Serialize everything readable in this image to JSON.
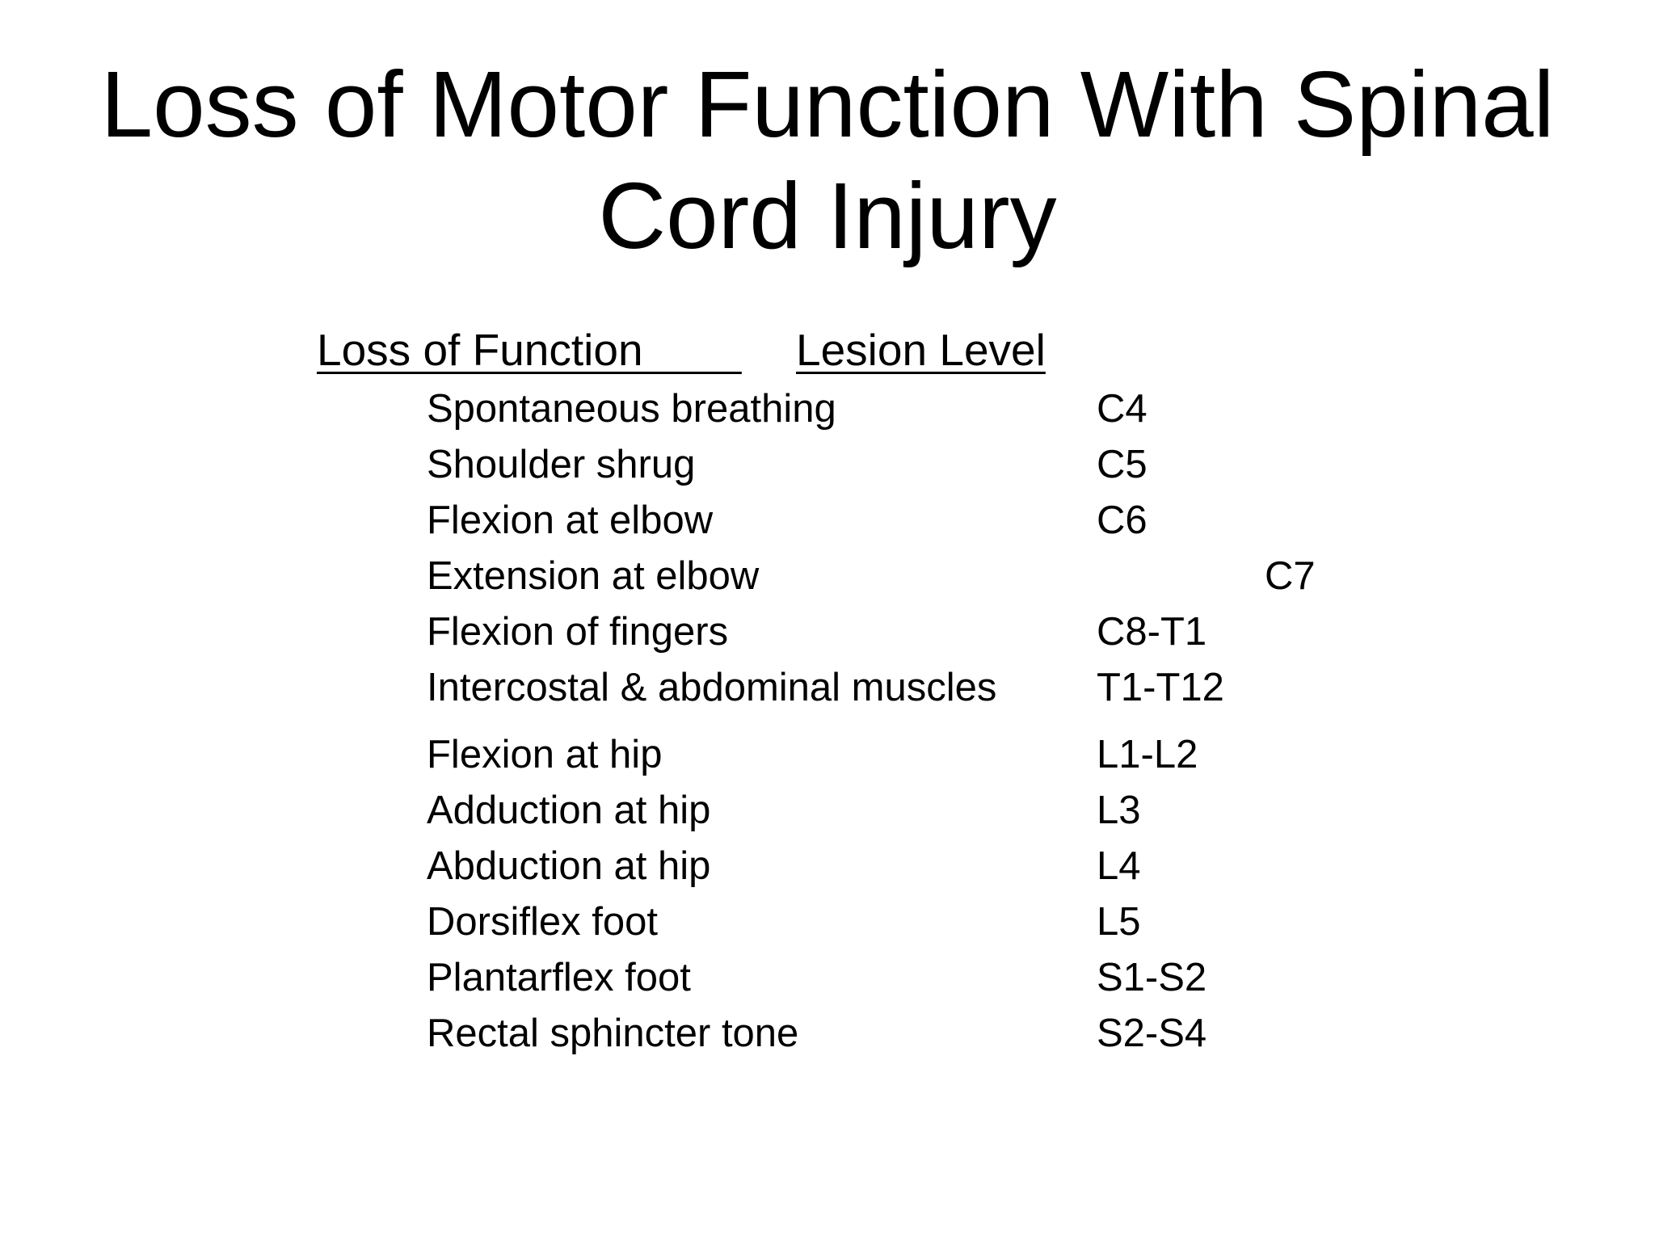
{
  "slide": {
    "title_line1": "Loss of Motor Function With Spinal",
    "title_line2": "Cord Injury",
    "header_function": "Loss of Function        ",
    "header_lesion": "Lesion Level",
    "rows": [
      {
        "function": "Spontaneous breathing",
        "level": "C4"
      },
      {
        "function": "Shoulder shrug",
        "level": "C5"
      },
      {
        "function": "Flexion at elbow",
        "level": "C6"
      },
      {
        "function": "Extension at elbow",
        "level": "C7"
      },
      {
        "function": "Flexion of fingers",
        "level": "C8-T1"
      },
      {
        "function": "Intercostal & abdominal muscles",
        "level": "T1-T12"
      },
      {
        "function": "Flexion at hip",
        "level": "L1-L2"
      },
      {
        "function": "Adduction at hip",
        "level": "L3"
      },
      {
        "function": "Abduction at hip",
        "level": "L4"
      },
      {
        "function": "Dorsiflex foot",
        "level": "L5"
      },
      {
        "function": "Plantarflex foot",
        "level": "S1-S2"
      },
      {
        "function": "Rectal sphincter tone",
        "level": "S2-S4"
      }
    ]
  }
}
